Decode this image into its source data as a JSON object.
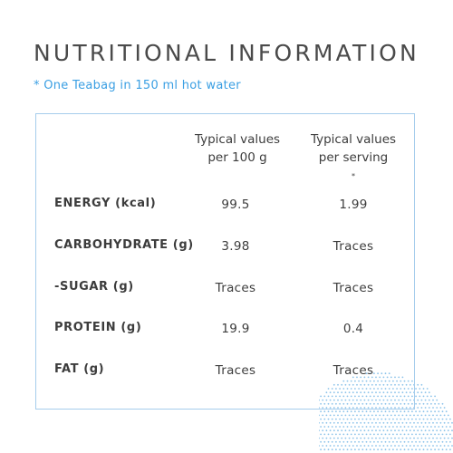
{
  "title": "NUTRITIONAL INFORMATION",
  "footnote": "* One Teabag in 150 ml hot water",
  "columns": {
    "per100_line1": "Typical values",
    "per100_line2": "per 100 g",
    "serving_line1": "Typical values",
    "serving_line2": "per serving",
    "serving_mark": "*"
  },
  "rows": [
    {
      "label": "ENERGY (kcal)",
      "per100": "99.5",
      "serving": "1.99"
    },
    {
      "label": "CARBOHYDRATE (g)",
      "per100": "3.98",
      "serving": "Traces"
    },
    {
      "label": "-SUGAR (g)",
      "per100": "Traces",
      "serving": "Traces"
    },
    {
      "label": "PROTEIN (g)",
      "per100": "19.9",
      "serving": "0.4"
    },
    {
      "label": "FAT (g)",
      "per100": "Traces",
      "serving": "Traces"
    }
  ],
  "colors": {
    "accent": "#3a9fe3",
    "border": "#a6cdec",
    "dots": "#8cc3ea"
  }
}
